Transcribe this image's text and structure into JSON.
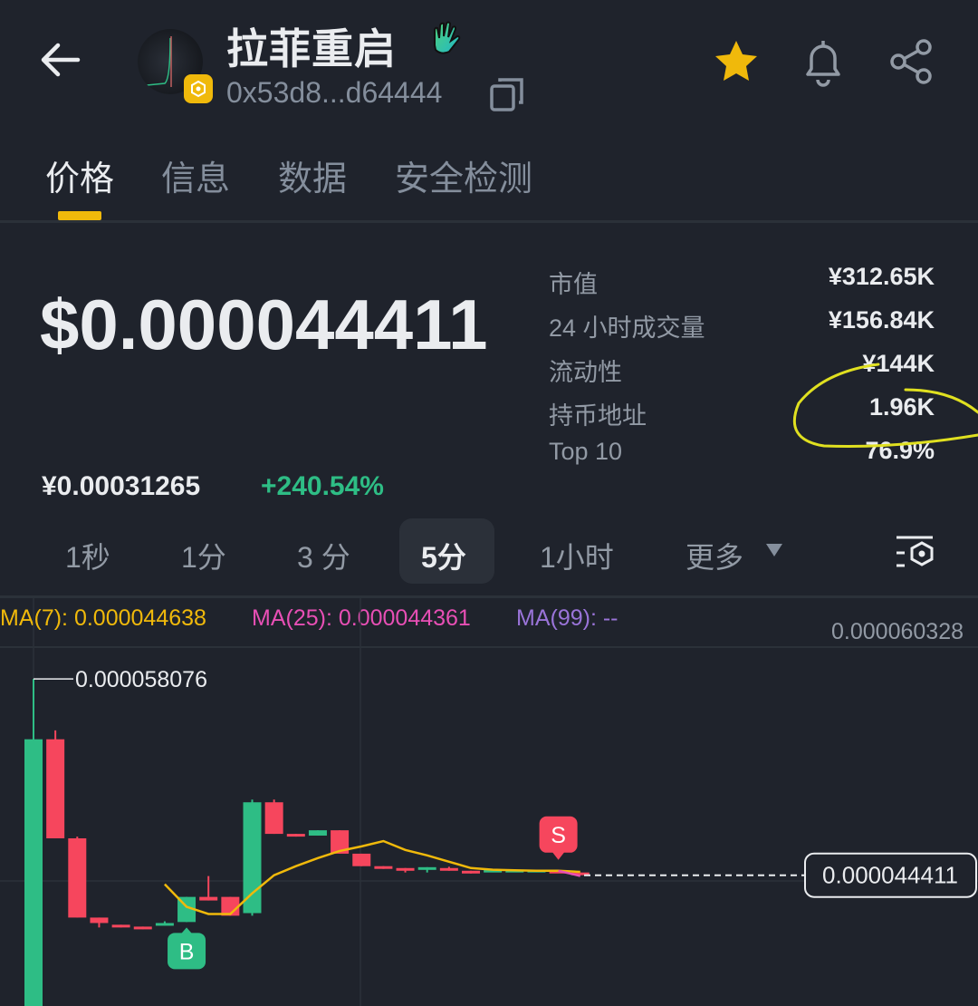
{
  "header": {
    "title": "拉菲重启",
    "address": "0x53d8...d64444",
    "icons": {
      "back": "arrow-left-icon",
      "favorite": "star-icon",
      "alert": "bell-icon",
      "share": "share-icon",
      "copy": "copy-icon",
      "chain": "bnb-chain-icon",
      "badge": "waving-hand-icon"
    },
    "favorite_color": "#f0b90b"
  },
  "tabs": [
    {
      "label": "价格",
      "active": true
    },
    {
      "label": "信息",
      "active": false
    },
    {
      "label": "数据",
      "active": false
    },
    {
      "label": "安全检测",
      "active": false
    }
  ],
  "price": {
    "usd": "$0.000044411",
    "cny": "¥0.00031265",
    "change": "+240.54%",
    "change_color": "#2ebd85"
  },
  "stats": [
    {
      "label": "市值",
      "value": "¥312.65K"
    },
    {
      "label": "24 小时成交量",
      "value": "¥156.84K"
    },
    {
      "label": "流动性",
      "value": "¥144K"
    },
    {
      "label": "持币地址",
      "value": "1.96K"
    },
    {
      "label": "Top 10",
      "value": "76.9%"
    }
  ],
  "intervals": [
    {
      "label": "1秒",
      "active": false
    },
    {
      "label": "1分",
      "active": false
    },
    {
      "label": "3 分",
      "active": false
    },
    {
      "label": "5分",
      "active": true
    },
    {
      "label": "1小时",
      "active": false
    },
    {
      "label": "更多",
      "active": false
    }
  ],
  "chart_settings_icon": "chart-settings-icon",
  "chart_data": {
    "type": "candlestick",
    "legend": {
      "ma7": {
        "label": "MA(7): 0.000044638",
        "color": "#f0b90b"
      },
      "ma25": {
        "label": "MA(25): 0.000044361",
        "color": "#e84fb5"
      },
      "ma99": {
        "label": "MA(99): --",
        "color": "#9a74d9"
      }
    },
    "axis_top_label": "0.000060328",
    "high_label": "0.000058076",
    "current_price_label": "0.000044411",
    "up_color": "#2ebd85",
    "down_color": "#f6465d",
    "ylim": [
      3.53e-05,
      6.03e-05
    ],
    "candles": [
      [
        3.47e-05,
        5.808e-05,
        3.4e-05,
        5.388e-05
      ],
      [
        5.388e-05,
        5.45e-05,
        4.698e-05,
        4.698e-05
      ],
      [
        4.698e-05,
        4.71e-05,
        4.146e-05,
        4.146e-05
      ],
      [
        4.146e-05,
        4.146e-05,
        4.077e-05,
        4.108e-05
      ],
      [
        4.096e-05,
        4.096e-05,
        4.077e-05,
        4.077e-05
      ],
      [
        4.083e-05,
        4.083e-05,
        4.065e-05,
        4.065e-05
      ],
      [
        4.096e-05,
        4.12e-05,
        4.09e-05,
        4.108e-05
      ],
      [
        4.115e-05,
        4.29e-05,
        4.115e-05,
        4.29e-05
      ],
      [
        4.29e-05,
        4.435e-05,
        4.265e-05,
        4.265e-05
      ],
      [
        4.29e-05,
        4.29e-05,
        4.159e-05,
        4.159e-05
      ],
      [
        4.177e-05,
        4.968e-05,
        4.159e-05,
        4.949e-05
      ],
      [
        4.949e-05,
        4.968e-05,
        4.729e-05,
        4.729e-05
      ],
      [
        4.729e-05,
        4.729e-05,
        4.71e-05,
        4.71e-05
      ],
      [
        4.717e-05,
        4.754e-05,
        4.717e-05,
        4.754e-05
      ],
      [
        4.754e-05,
        4.754e-05,
        4.591e-05,
        4.591e-05
      ],
      [
        4.591e-05,
        4.591e-05,
        4.504e-05,
        4.504e-05
      ],
      [
        4.504e-05,
        4.504e-05,
        4.485e-05,
        4.485e-05
      ],
      [
        4.491e-05,
        4.491e-05,
        4.46e-05,
        4.472e-05
      ],
      [
        4.479e-05,
        4.497e-05,
        4.46e-05,
        4.497e-05
      ],
      [
        4.491e-05,
        4.5e-05,
        4.472e-05,
        4.472e-05
      ],
      [
        4.472e-05,
        4.472e-05,
        4.453e-05,
        4.453e-05
      ],
      [
        4.466e-05,
        4.479e-05,
        4.466e-05,
        4.479e-05
      ],
      [
        4.475e-05,
        4.482e-05,
        4.475e-05,
        4.479e-05
      ],
      [
        4.472e-05,
        4.479e-05,
        4.472e-05,
        4.479e-05
      ],
      [
        4.472e-05,
        4.472e-05,
        4.46e-05,
        4.46e-05
      ],
      [
        4.46e-05,
        4.46e-05,
        4.441e-05,
        4.441e-05
      ]
    ],
    "ma7": [
      null,
      null,
      null,
      null,
      null,
      null,
      4.378e-05,
      4.221e-05,
      4.171e-05,
      4.171e-05,
      4.315e-05,
      4.441e-05,
      4.504e-05,
      4.56e-05,
      4.61e-05,
      4.642e-05,
      4.679e-05,
      4.617e-05,
      4.579e-05,
      4.535e-05,
      4.491e-05,
      4.479e-05,
      4.475e-05,
      4.472e-05,
      4.472e-05,
      4.464e-05
    ],
    "ma25": [
      null,
      null,
      null,
      null,
      null,
      null,
      null,
      null,
      null,
      null,
      null,
      null,
      null,
      null,
      null,
      null,
      null,
      null,
      null,
      null,
      null,
      null,
      null,
      null,
      4.472e-05,
      4.436e-05
    ],
    "markers": [
      {
        "label": "B",
        "candle": 7,
        "color": "#2ebd85"
      },
      {
        "label": "S",
        "candle": 24,
        "color": "#f6465d"
      }
    ]
  }
}
